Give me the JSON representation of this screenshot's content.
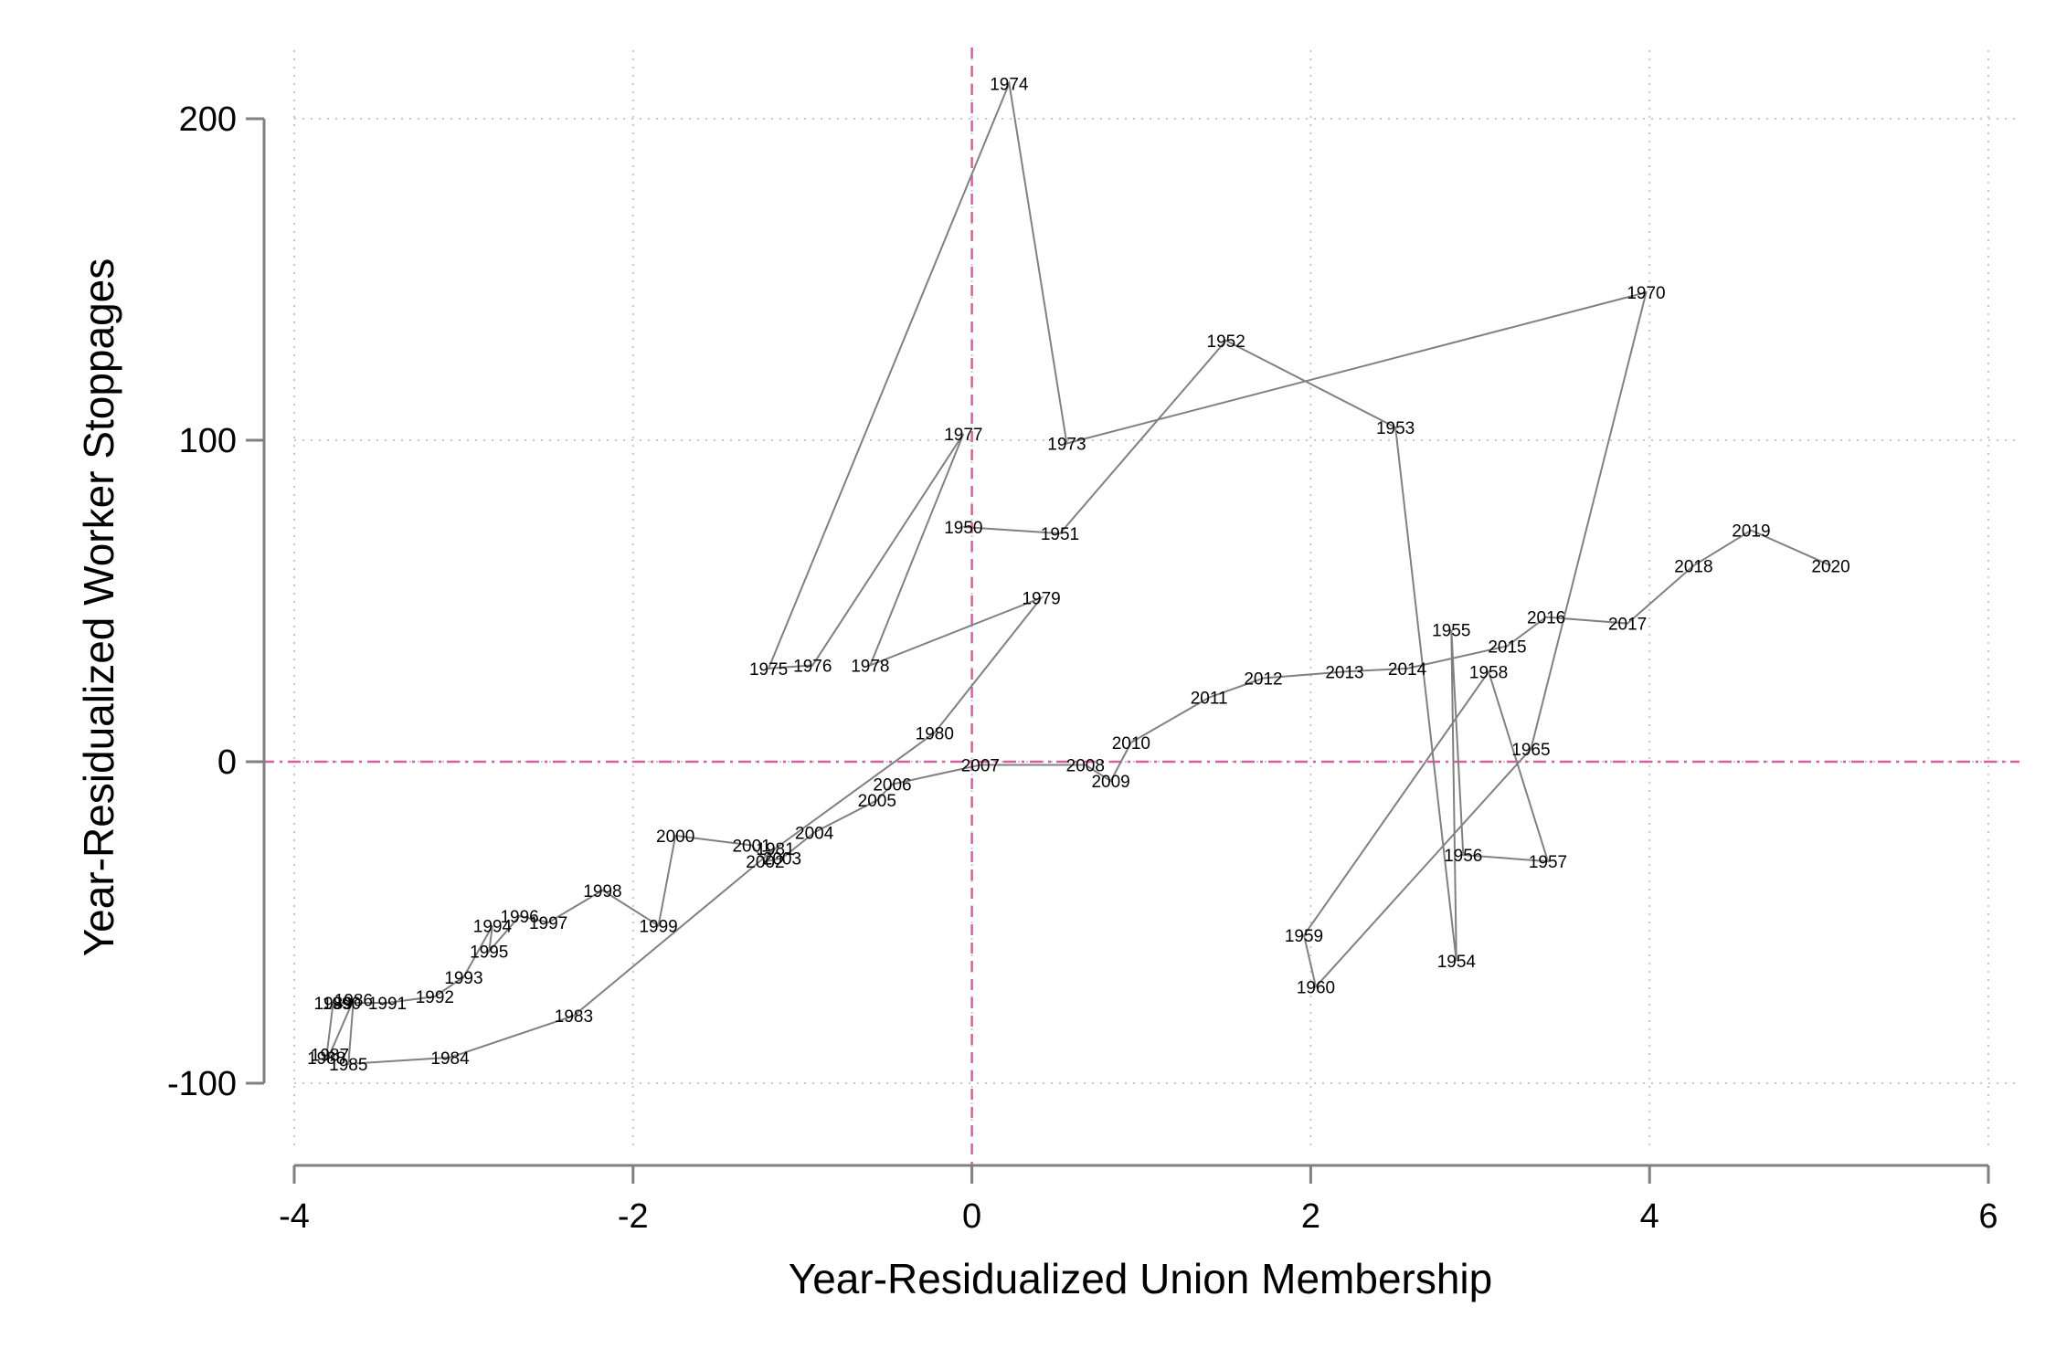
{
  "chart_data": {
    "type": "line",
    "title": "",
    "xlabel": "Year-Residualized Union Membership",
    "ylabel": "Year-Residualized Worker Stoppages",
    "xlim": [
      -4,
      6
    ],
    "ylim": [
      -100,
      200
    ],
    "xticks": [
      -4,
      -2,
      0,
      2,
      4,
      6
    ],
    "yticks": [
      -100,
      0,
      100,
      200
    ],
    "grid": true,
    "reference_lines": [
      {
        "axis": "x",
        "value": 0,
        "color": "#d6619c",
        "style": "dashed"
      },
      {
        "axis": "y",
        "value": 0,
        "color": "#d6619c",
        "style": "dash-dot"
      }
    ],
    "line_color": "#808080",
    "series": [
      {
        "points": [
          {
            "year": "1950",
            "x": -0.05,
            "y": 73
          },
          {
            "year": "1951",
            "x": 0.52,
            "y": 71
          },
          {
            "year": "1952",
            "x": 1.5,
            "y": 131
          },
          {
            "year": "1953",
            "x": 2.5,
            "y": 104
          },
          {
            "year": "1954",
            "x": 2.86,
            "y": -62
          },
          {
            "year": "1955",
            "x": 2.83,
            "y": 41
          },
          {
            "year": "1956",
            "x": 2.9,
            "y": -29
          },
          {
            "year": "1957",
            "x": 3.4,
            "y": -31
          },
          {
            "year": "1958",
            "x": 3.05,
            "y": 28
          },
          {
            "year": "1959",
            "x": 1.96,
            "y": -54
          },
          {
            "year": "1960",
            "x": 2.03,
            "y": -70
          },
          {
            "year": "1965",
            "x": 3.3,
            "y": 4
          },
          {
            "year": "1970",
            "x": 3.98,
            "y": 146
          },
          {
            "year": "1973",
            "x": 0.56,
            "y": 99
          },
          {
            "year": "1974",
            "x": 0.22,
            "y": 211
          },
          {
            "year": "1975",
            "x": -1.2,
            "y": 29
          },
          {
            "year": "1976",
            "x": -0.94,
            "y": 30
          },
          {
            "year": "1977",
            "x": -0.05,
            "y": 102
          },
          {
            "year": "1978",
            "x": -0.6,
            "y": 30
          },
          {
            "year": "1979",
            "x": 0.41,
            "y": 51
          },
          {
            "year": "1980",
            "x": -0.22,
            "y": 9
          },
          {
            "year": "1981",
            "x": -1.16,
            "y": -27
          },
          {
            "year": "1983",
            "x": -2.35,
            "y": -79
          },
          {
            "year": "1984",
            "x": -3.08,
            "y": -92
          },
          {
            "year": "1985",
            "x": -3.68,
            "y": -94
          },
          {
            "year": "1986",
            "x": -3.65,
            "y": -74
          },
          {
            "year": "1987",
            "x": -3.79,
            "y": -91
          },
          {
            "year": "1988",
            "x": -3.81,
            "y": -92
          },
          {
            "year": "1989",
            "x": -3.77,
            "y": -75
          },
          {
            "year": "1990",
            "x": -3.72,
            "y": -75
          },
          {
            "year": "1991",
            "x": -3.45,
            "y": -75
          },
          {
            "year": "1992",
            "x": -3.17,
            "y": -73
          },
          {
            "year": "1993",
            "x": -3.0,
            "y": -67
          },
          {
            "year": "1994",
            "x": -2.83,
            "y": -51
          },
          {
            "year": "1995",
            "x": -2.85,
            "y": -59
          },
          {
            "year": "1996",
            "x": -2.67,
            "y": -48
          },
          {
            "year": "1997",
            "x": -2.5,
            "y": -50
          },
          {
            "year": "1998",
            "x": -2.18,
            "y": -40
          },
          {
            "year": "1999",
            "x": -1.85,
            "y": -51
          },
          {
            "year": "2000",
            "x": -1.75,
            "y": -23
          },
          {
            "year": "2001",
            "x": -1.3,
            "y": -26
          },
          {
            "year": "2002",
            "x": -1.22,
            "y": -31
          },
          {
            "year": "2003",
            "x": -1.12,
            "y": -30
          },
          {
            "year": "2004",
            "x": -0.93,
            "y": -22
          },
          {
            "year": "2005",
            "x": -0.56,
            "y": -12
          },
          {
            "year": "2006",
            "x": -0.47,
            "y": -7
          },
          {
            "year": "2007",
            "x": 0.05,
            "y": -1
          },
          {
            "year": "2008",
            "x": 0.67,
            "y": -1
          },
          {
            "year": "2009",
            "x": 0.82,
            "y": -6
          },
          {
            "year": "2010",
            "x": 0.94,
            "y": 6
          },
          {
            "year": "2011",
            "x": 1.4,
            "y": 20
          },
          {
            "year": "2012",
            "x": 1.72,
            "y": 26
          },
          {
            "year": "2013",
            "x": 2.2,
            "y": 28
          },
          {
            "year": "2014",
            "x": 2.57,
            "y": 29
          },
          {
            "year": "2015",
            "x": 3.16,
            "y": 36
          },
          {
            "year": "2016",
            "x": 3.39,
            "y": 45
          },
          {
            "year": "2017",
            "x": 3.87,
            "y": 43
          },
          {
            "year": "2018",
            "x": 4.26,
            "y": 61
          },
          {
            "year": "2019",
            "x": 4.6,
            "y": 72
          },
          {
            "year": "2020",
            "x": 5.07,
            "y": 61
          }
        ]
      }
    ]
  }
}
